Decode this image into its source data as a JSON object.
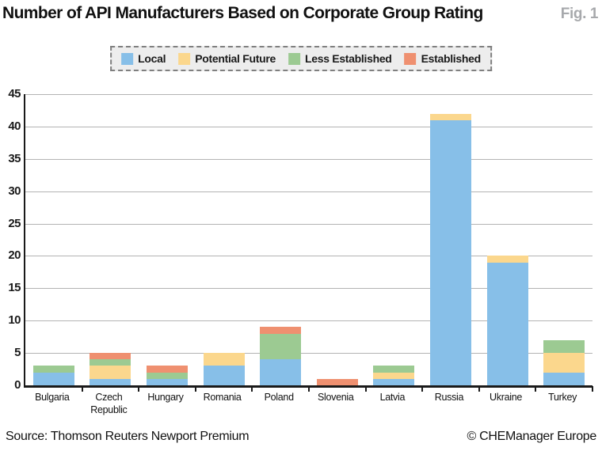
{
  "header": {
    "title": "Number of API Manufacturers Based on Corporate Group Rating",
    "fig_label": "Fig. 1"
  },
  "footer": {
    "source": "Source: Thomson Reuters Newport Premium",
    "credit": "© CHEManager Europe"
  },
  "colors": {
    "local": "#87bfe8",
    "potential_future": "#fbd78d",
    "less_established": "#9cca92",
    "established": "#ef9070",
    "gridline": "#b3b3b3",
    "axis": "#1a1a1a",
    "legend_bg": "#ededed",
    "legend_border": "#7f7f7f",
    "fig_label": "#a7a9ac"
  },
  "chart_data": {
    "type": "bar",
    "stacked": true,
    "title": "Number of API Manufacturers Based on Corporate Group Rating",
    "categories": [
      "Bulgaria",
      "Czech Republic",
      "Hungary",
      "Romania",
      "Poland",
      "Slovenia",
      "Latvia",
      "Russia",
      "Ukraine",
      "Turkey"
    ],
    "series": [
      {
        "name": "Local",
        "color": "#87bfe8",
        "values": [
          2,
          1,
          1,
          3,
          4,
          0,
          1,
          41,
          19,
          2
        ]
      },
      {
        "name": "Potential Future",
        "color": "#fbd78d",
        "values": [
          0,
          2,
          0,
          2,
          0,
          0,
          1,
          1,
          1,
          3
        ]
      },
      {
        "name": "Less Established",
        "color": "#9cca92",
        "values": [
          1,
          1,
          1,
          0,
          4,
          0,
          1,
          0,
          0,
          2
        ]
      },
      {
        "name": "Established",
        "color": "#ef9070",
        "values": [
          0,
          1,
          1,
          0,
          1,
          1,
          0,
          0,
          0,
          0
        ]
      }
    ],
    "totals": [
      3,
      5,
      3,
      5,
      9,
      1,
      3,
      42,
      20,
      7
    ],
    "ylabel": "",
    "xlabel": "",
    "ylim": [
      0,
      45
    ],
    "ytick_step": 5,
    "grid": true,
    "legend_position": "top-center"
  }
}
